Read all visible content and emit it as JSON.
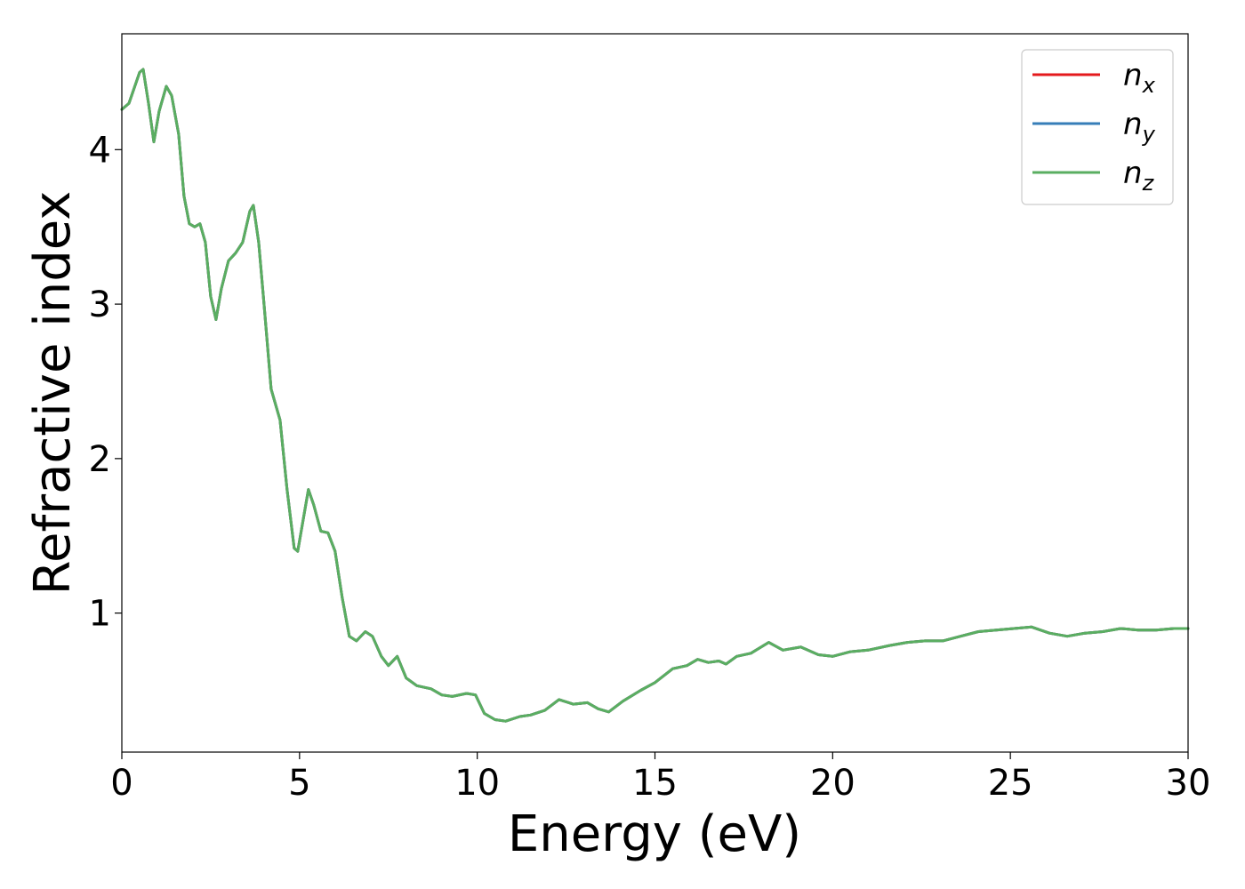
{
  "chart_data": {
    "type": "line",
    "title": "",
    "xlabel": "Energy (eV)",
    "ylabel": "Refractive index",
    "xlim": [
      0,
      30
    ],
    "ylim": [
      0.1,
      4.75
    ],
    "x_ticks": [
      0,
      5,
      10,
      15,
      20,
      25,
      30
    ],
    "y_ticks": [
      1,
      2,
      3,
      4
    ],
    "grid": false,
    "legend_position": "top-right",
    "series": [
      {
        "name": "n",
        "subscript": "x",
        "color": "#e41a1c",
        "points": [
          [
            0,
            4.26
          ],
          [
            0.2,
            4.3
          ],
          [
            0.5,
            4.5
          ],
          [
            0.6,
            4.52
          ],
          [
            0.75,
            4.3
          ],
          [
            0.9,
            4.05
          ],
          [
            1.05,
            4.25
          ],
          [
            1.25,
            4.41
          ],
          [
            1.4,
            4.35
          ],
          [
            1.6,
            4.1
          ],
          [
            1.75,
            3.7
          ],
          [
            1.9,
            3.52
          ],
          [
            2.05,
            3.5
          ],
          [
            2.2,
            3.52
          ],
          [
            2.35,
            3.4
          ],
          [
            2.5,
            3.05
          ],
          [
            2.65,
            2.9
          ],
          [
            2.8,
            3.1
          ],
          [
            3.0,
            3.28
          ],
          [
            3.2,
            3.33
          ],
          [
            3.4,
            3.4
          ],
          [
            3.6,
            3.6
          ],
          [
            3.7,
            3.64
          ],
          [
            3.85,
            3.4
          ],
          [
            4.0,
            3.0
          ],
          [
            4.2,
            2.45
          ],
          [
            4.45,
            2.25
          ],
          [
            4.65,
            1.8
          ],
          [
            4.85,
            1.42
          ],
          [
            4.95,
            1.4
          ],
          [
            5.1,
            1.6
          ],
          [
            5.25,
            1.8
          ],
          [
            5.4,
            1.7
          ],
          [
            5.6,
            1.53
          ],
          [
            5.8,
            1.52
          ],
          [
            6.0,
            1.4
          ],
          [
            6.2,
            1.1
          ],
          [
            6.4,
            0.85
          ],
          [
            6.6,
            0.82
          ],
          [
            6.85,
            0.88
          ],
          [
            7.05,
            0.85
          ],
          [
            7.3,
            0.72
          ],
          [
            7.5,
            0.66
          ],
          [
            7.75,
            0.72
          ],
          [
            8.0,
            0.58
          ],
          [
            8.3,
            0.53
          ],
          [
            8.7,
            0.51
          ],
          [
            9.0,
            0.47
          ],
          [
            9.3,
            0.46
          ],
          [
            9.7,
            0.48
          ],
          [
            9.95,
            0.47
          ],
          [
            10.2,
            0.35
          ],
          [
            10.5,
            0.31
          ],
          [
            10.8,
            0.3
          ],
          [
            11.2,
            0.33
          ],
          [
            11.5,
            0.34
          ],
          [
            11.9,
            0.37
          ],
          [
            12.3,
            0.44
          ],
          [
            12.7,
            0.41
          ],
          [
            13.1,
            0.42
          ],
          [
            13.4,
            0.38
          ],
          [
            13.7,
            0.36
          ],
          [
            14.1,
            0.43
          ],
          [
            14.6,
            0.5
          ],
          [
            15.0,
            0.55
          ],
          [
            15.5,
            0.64
          ],
          [
            15.9,
            0.66
          ],
          [
            16.2,
            0.7
          ],
          [
            16.5,
            0.68
          ],
          [
            16.8,
            0.69
          ],
          [
            17.0,
            0.67
          ],
          [
            17.3,
            0.72
          ],
          [
            17.7,
            0.74
          ],
          [
            18.2,
            0.81
          ],
          [
            18.6,
            0.76
          ],
          [
            19.1,
            0.78
          ],
          [
            19.6,
            0.73
          ],
          [
            20.0,
            0.72
          ],
          [
            20.5,
            0.75
          ],
          [
            21.0,
            0.76
          ],
          [
            21.6,
            0.79
          ],
          [
            22.1,
            0.81
          ],
          [
            22.6,
            0.82
          ],
          [
            23.1,
            0.82
          ],
          [
            23.6,
            0.85
          ],
          [
            24.1,
            0.88
          ],
          [
            24.6,
            0.89
          ],
          [
            25.1,
            0.9
          ],
          [
            25.6,
            0.91
          ],
          [
            26.1,
            0.87
          ],
          [
            26.6,
            0.85
          ],
          [
            27.1,
            0.87
          ],
          [
            27.6,
            0.88
          ],
          [
            28.1,
            0.9
          ],
          [
            28.6,
            0.89
          ],
          [
            29.1,
            0.89
          ],
          [
            29.6,
            0.9
          ],
          [
            30.0,
            0.9
          ]
        ]
      },
      {
        "name": "n",
        "subscript": "y",
        "color": "#377eb8",
        "points": [
          [
            0,
            4.26
          ],
          [
            0.2,
            4.3
          ],
          [
            0.5,
            4.5
          ],
          [
            0.6,
            4.52
          ],
          [
            0.75,
            4.3
          ],
          [
            0.9,
            4.05
          ],
          [
            1.05,
            4.25
          ],
          [
            1.25,
            4.41
          ],
          [
            1.4,
            4.35
          ],
          [
            1.6,
            4.1
          ],
          [
            1.75,
            3.7
          ],
          [
            1.9,
            3.52
          ],
          [
            2.05,
            3.5
          ],
          [
            2.2,
            3.52
          ],
          [
            2.35,
            3.4
          ],
          [
            2.5,
            3.05
          ],
          [
            2.65,
            2.9
          ],
          [
            2.8,
            3.1
          ],
          [
            3.0,
            3.28
          ],
          [
            3.2,
            3.33
          ],
          [
            3.4,
            3.4
          ],
          [
            3.6,
            3.6
          ],
          [
            3.7,
            3.64
          ],
          [
            3.85,
            3.4
          ],
          [
            4.0,
            3.0
          ],
          [
            4.2,
            2.45
          ],
          [
            4.45,
            2.25
          ],
          [
            4.65,
            1.8
          ],
          [
            4.85,
            1.42
          ],
          [
            4.95,
            1.4
          ],
          [
            5.1,
            1.6
          ],
          [
            5.25,
            1.8
          ],
          [
            5.4,
            1.7
          ],
          [
            5.6,
            1.53
          ],
          [
            5.8,
            1.52
          ],
          [
            6.0,
            1.4
          ],
          [
            6.2,
            1.1
          ],
          [
            6.4,
            0.85
          ],
          [
            6.6,
            0.82
          ],
          [
            6.85,
            0.88
          ],
          [
            7.05,
            0.85
          ],
          [
            7.3,
            0.72
          ],
          [
            7.5,
            0.66
          ],
          [
            7.75,
            0.72
          ],
          [
            8.0,
            0.58
          ],
          [
            8.3,
            0.53
          ],
          [
            8.7,
            0.51
          ],
          [
            9.0,
            0.47
          ],
          [
            9.3,
            0.46
          ],
          [
            9.7,
            0.48
          ],
          [
            9.95,
            0.47
          ],
          [
            10.2,
            0.35
          ],
          [
            10.5,
            0.31
          ],
          [
            10.8,
            0.3
          ],
          [
            11.2,
            0.33
          ],
          [
            11.5,
            0.34
          ],
          [
            11.9,
            0.37
          ],
          [
            12.3,
            0.44
          ],
          [
            12.7,
            0.41
          ],
          [
            13.1,
            0.42
          ],
          [
            13.4,
            0.38
          ],
          [
            13.7,
            0.36
          ],
          [
            14.1,
            0.43
          ],
          [
            14.6,
            0.5
          ],
          [
            15.0,
            0.55
          ],
          [
            15.5,
            0.64
          ],
          [
            15.9,
            0.66
          ],
          [
            16.2,
            0.7
          ],
          [
            16.5,
            0.68
          ],
          [
            16.8,
            0.69
          ],
          [
            17.0,
            0.67
          ],
          [
            17.3,
            0.72
          ],
          [
            17.7,
            0.74
          ],
          [
            18.2,
            0.81
          ],
          [
            18.6,
            0.76
          ],
          [
            19.1,
            0.78
          ],
          [
            19.6,
            0.73
          ],
          [
            20.0,
            0.72
          ],
          [
            20.5,
            0.75
          ],
          [
            21.0,
            0.76
          ],
          [
            21.6,
            0.79
          ],
          [
            22.1,
            0.81
          ],
          [
            22.6,
            0.82
          ],
          [
            23.1,
            0.82
          ],
          [
            23.6,
            0.85
          ],
          [
            24.1,
            0.88
          ],
          [
            24.6,
            0.89
          ],
          [
            25.1,
            0.9
          ],
          [
            25.6,
            0.91
          ],
          [
            26.1,
            0.87
          ],
          [
            26.6,
            0.85
          ],
          [
            27.1,
            0.87
          ],
          [
            27.6,
            0.88
          ],
          [
            28.1,
            0.9
          ],
          [
            28.6,
            0.89
          ],
          [
            29.1,
            0.89
          ],
          [
            29.6,
            0.9
          ],
          [
            30.0,
            0.9
          ]
        ]
      },
      {
        "name": "n",
        "subscript": "z",
        "color": "#5aae61",
        "points": [
          [
            0,
            4.26
          ],
          [
            0.2,
            4.3
          ],
          [
            0.5,
            4.5
          ],
          [
            0.6,
            4.52
          ],
          [
            0.75,
            4.3
          ],
          [
            0.9,
            4.05
          ],
          [
            1.05,
            4.25
          ],
          [
            1.25,
            4.41
          ],
          [
            1.4,
            4.35
          ],
          [
            1.6,
            4.1
          ],
          [
            1.75,
            3.7
          ],
          [
            1.9,
            3.52
          ],
          [
            2.05,
            3.5
          ],
          [
            2.2,
            3.52
          ],
          [
            2.35,
            3.4
          ],
          [
            2.5,
            3.05
          ],
          [
            2.65,
            2.9
          ],
          [
            2.8,
            3.1
          ],
          [
            3.0,
            3.28
          ],
          [
            3.2,
            3.33
          ],
          [
            3.4,
            3.4
          ],
          [
            3.6,
            3.6
          ],
          [
            3.7,
            3.64
          ],
          [
            3.85,
            3.4
          ],
          [
            4.0,
            3.0
          ],
          [
            4.2,
            2.45
          ],
          [
            4.45,
            2.25
          ],
          [
            4.65,
            1.8
          ],
          [
            4.85,
            1.42
          ],
          [
            4.95,
            1.4
          ],
          [
            5.1,
            1.6
          ],
          [
            5.25,
            1.8
          ],
          [
            5.4,
            1.7
          ],
          [
            5.6,
            1.53
          ],
          [
            5.8,
            1.52
          ],
          [
            6.0,
            1.4
          ],
          [
            6.2,
            1.1
          ],
          [
            6.4,
            0.85
          ],
          [
            6.6,
            0.82
          ],
          [
            6.85,
            0.88
          ],
          [
            7.05,
            0.85
          ],
          [
            7.3,
            0.72
          ],
          [
            7.5,
            0.66
          ],
          [
            7.75,
            0.72
          ],
          [
            8.0,
            0.58
          ],
          [
            8.3,
            0.53
          ],
          [
            8.7,
            0.51
          ],
          [
            9.0,
            0.47
          ],
          [
            9.3,
            0.46
          ],
          [
            9.7,
            0.48
          ],
          [
            9.95,
            0.47
          ],
          [
            10.2,
            0.35
          ],
          [
            10.5,
            0.31
          ],
          [
            10.8,
            0.3
          ],
          [
            11.2,
            0.33
          ],
          [
            11.5,
            0.34
          ],
          [
            11.9,
            0.37
          ],
          [
            12.3,
            0.44
          ],
          [
            12.7,
            0.41
          ],
          [
            13.1,
            0.42
          ],
          [
            13.4,
            0.38
          ],
          [
            13.7,
            0.36
          ],
          [
            14.1,
            0.43
          ],
          [
            14.6,
            0.5
          ],
          [
            15.0,
            0.55
          ],
          [
            15.5,
            0.64
          ],
          [
            15.9,
            0.66
          ],
          [
            16.2,
            0.7
          ],
          [
            16.5,
            0.68
          ],
          [
            16.8,
            0.69
          ],
          [
            17.0,
            0.67
          ],
          [
            17.3,
            0.72
          ],
          [
            17.7,
            0.74
          ],
          [
            18.2,
            0.81
          ],
          [
            18.6,
            0.76
          ],
          [
            19.1,
            0.78
          ],
          [
            19.6,
            0.73
          ],
          [
            20.0,
            0.72
          ],
          [
            20.5,
            0.75
          ],
          [
            21.0,
            0.76
          ],
          [
            21.6,
            0.79
          ],
          [
            22.1,
            0.81
          ],
          [
            22.6,
            0.82
          ],
          [
            23.1,
            0.82
          ],
          [
            23.6,
            0.85
          ],
          [
            24.1,
            0.88
          ],
          [
            24.6,
            0.89
          ],
          [
            25.1,
            0.9
          ],
          [
            25.6,
            0.91
          ],
          [
            26.1,
            0.87
          ],
          [
            26.6,
            0.85
          ],
          [
            27.1,
            0.87
          ],
          [
            27.6,
            0.88
          ],
          [
            28.1,
            0.9
          ],
          [
            28.6,
            0.89
          ],
          [
            29.1,
            0.89
          ],
          [
            29.6,
            0.9
          ],
          [
            30.0,
            0.9
          ]
        ]
      }
    ]
  }
}
